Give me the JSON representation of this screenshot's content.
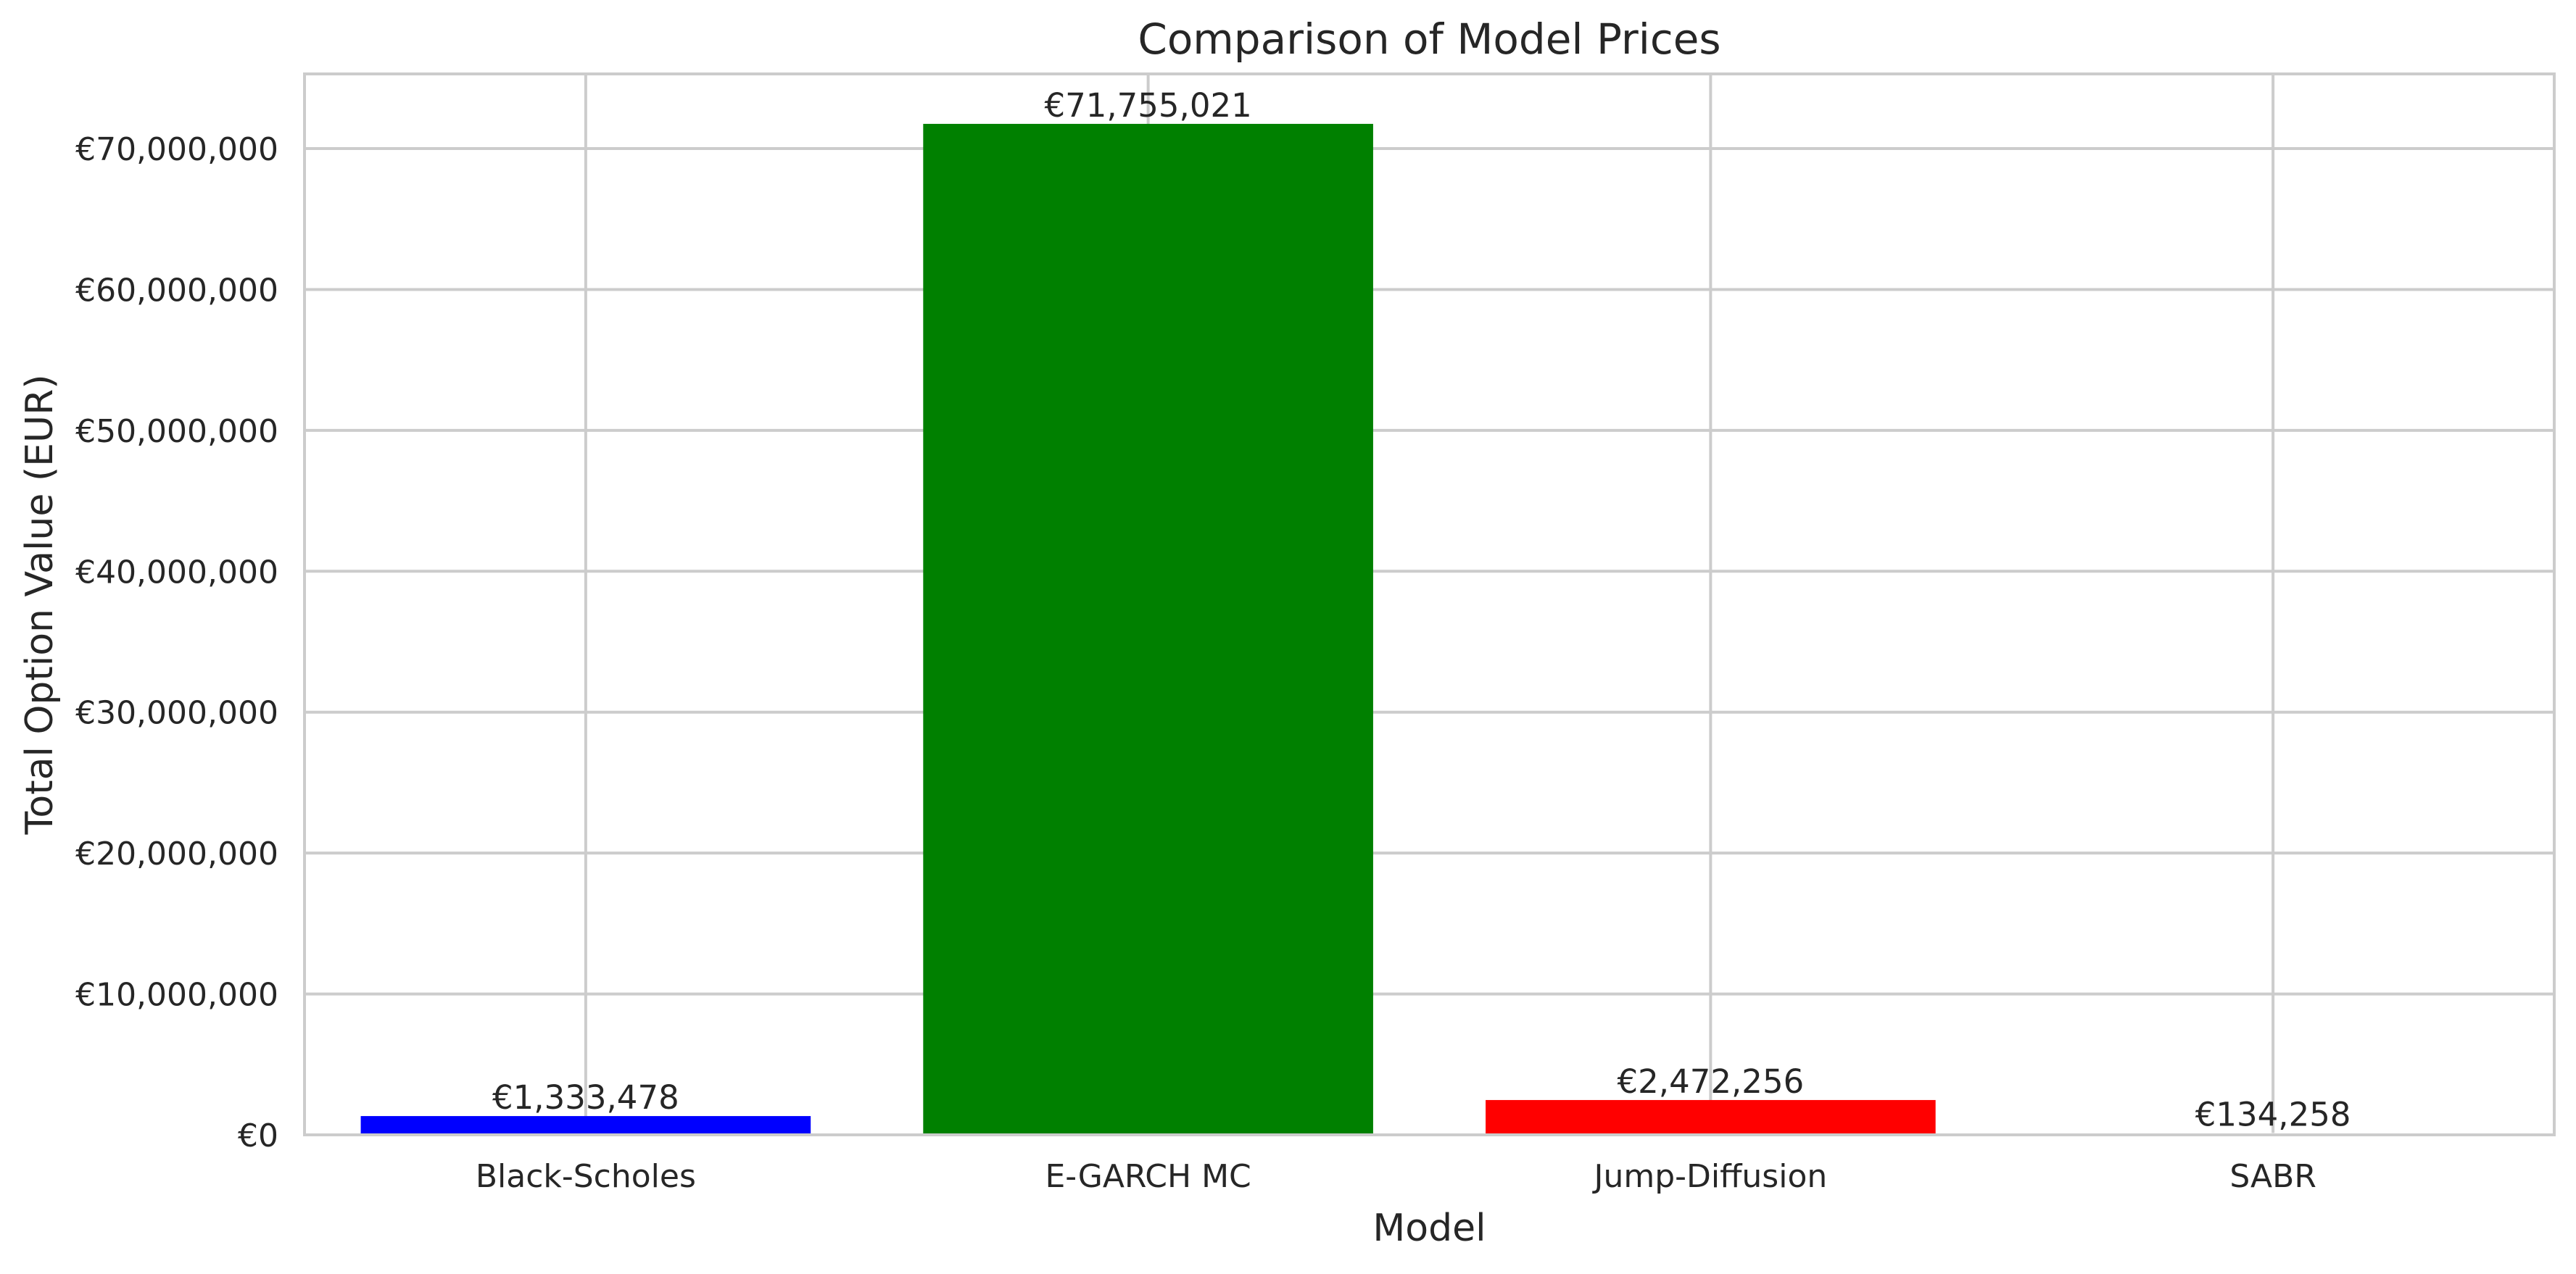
{
  "chart_data": {
    "type": "bar",
    "title": "Comparison of Model Prices",
    "xlabel": "Model",
    "ylabel": "Total Option Value (EUR)",
    "categories": [
      "Black-Scholes",
      "E-GARCH MC",
      "Jump-Diffusion",
      "SABR"
    ],
    "values": [
      1333478,
      71755021,
      2472256,
      134258
    ],
    "data_labels": [
      "€1,333,478",
      "€71,755,021",
      "€2,472,256",
      "€134,258"
    ],
    "bar_colors": [
      "#0000ff",
      "#008000",
      "#ff0000",
      "#ffffff"
    ],
    "ylim": [
      0,
      75300000
    ],
    "yticks": [
      0,
      10000000,
      20000000,
      30000000,
      40000000,
      50000000,
      60000000,
      70000000
    ],
    "ytick_labels": [
      "€0",
      "€10,000,000",
      "€20,000,000",
      "€30,000,000",
      "€40,000,000",
      "€50,000,000",
      "€60,000,000",
      "€70,000,000"
    ],
    "grid": true,
    "legend": "none"
  }
}
